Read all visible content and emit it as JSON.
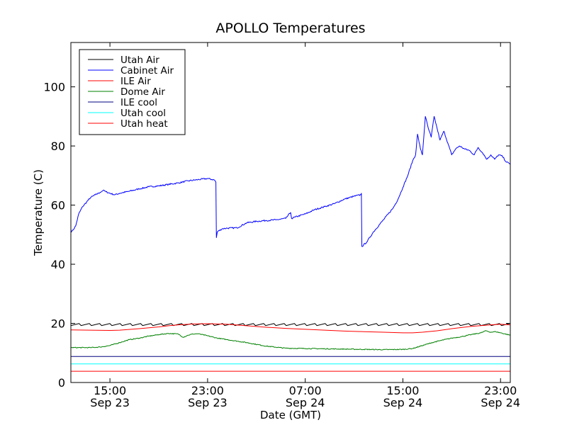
{
  "chart_data": {
    "type": "line",
    "title": "APOLLO Temperatures",
    "xlabel": "Date (GMT)",
    "ylabel": "Temperature (C)",
    "xlim_hours": [
      0,
      45
    ],
    "ylim": [
      0,
      115
    ],
    "yticks": [
      0,
      20,
      40,
      60,
      80,
      100
    ],
    "xticks": [
      {
        "hour": 4,
        "time": "15:00",
        "date": "Sep 23"
      },
      {
        "hour": 14,
        "time": "23:00",
        "date": "Sep 23"
      },
      {
        "hour": 24,
        "time": "07:00",
        "date": "Sep 24"
      },
      {
        "hour": 34,
        "time": "15:00",
        "date": "Sep 24"
      },
      {
        "hour": 44,
        "time": "23:00",
        "date": "Sep 24"
      }
    ],
    "x_axis_note": "x values are hours after 11:00 GMT Sep 23",
    "legend_position": "top-left",
    "series": [
      {
        "name": "Utah Air",
        "color": "#000000",
        "style": "sawtooth",
        "base": 19.6,
        "amplitude": 0.7,
        "period_hours": 1.05,
        "x": [
          0,
          45
        ],
        "y": [
          19.6,
          19.6
        ]
      },
      {
        "name": "Cabinet Air",
        "color": "#0000ff",
        "noise": 0.25,
        "x": [
          0,
          0.2,
          0.5,
          0.8,
          1.2,
          1.6,
          2.0,
          2.5,
          3.0,
          3.3,
          3.6,
          4.0,
          4.5,
          5.0,
          6.0,
          7.0,
          8.0,
          9.0,
          10.0,
          11.0,
          12.0,
          13.0,
          14.0,
          14.7,
          14.85,
          14.9,
          15.0,
          15.5,
          16.0,
          17.0,
          18.0,
          19.0,
          20.0,
          21.0,
          22.0,
          22.5,
          22.6,
          23.0,
          24.0,
          25.0,
          26.0,
          27.0,
          28.0,
          29.0,
          29.7,
          29.75,
          29.8,
          30.3,
          31.0,
          32.0,
          33.0,
          33.5,
          34.0,
          34.5,
          35.0,
          35.3,
          35.5,
          35.8,
          36.0,
          36.3,
          36.6,
          36.9,
          37.2,
          37.5,
          37.8,
          38.2,
          38.6,
          39.0,
          39.4,
          39.8,
          40.3,
          40.8,
          41.3,
          41.7,
          42.2,
          42.6,
          43.0,
          43.4,
          43.8,
          44.2,
          44.6,
          45.0
        ],
        "y": [
          51,
          51.5,
          53,
          57,
          59.5,
          61,
          62.5,
          63.5,
          64.3,
          65,
          64.5,
          64,
          63.5,
          64,
          64.7,
          65.5,
          66.2,
          66.5,
          67,
          67.5,
          68.2,
          68.6,
          69,
          68.5,
          67.8,
          49,
          51,
          52,
          52.2,
          52.3,
          54,
          54.5,
          54.8,
          55,
          55.5,
          57.5,
          55.5,
          56,
          57,
          58.5,
          59.5,
          60.5,
          62,
          63,
          63.5,
          64,
          46,
          47.5,
          51,
          55,
          59,
          62,
          66,
          70,
          75,
          77,
          84,
          79,
          77,
          90,
          86,
          83,
          90,
          86,
          82,
          85,
          81,
          77,
          79,
          80,
          79,
          78.5,
          77,
          79.5,
          77.5,
          75.5,
          77,
          75.5,
          77,
          76.5,
          74.5,
          74
        ]
      },
      {
        "name": "ILE Air",
        "color": "#ff0000",
        "x": [
          0,
          2,
          4,
          5,
          7,
          9,
          10,
          11,
          12.5,
          14,
          16,
          18,
          20,
          22,
          24,
          26,
          28,
          30,
          32,
          34,
          35,
          36,
          37.5,
          39,
          41,
          43,
          44,
          45
        ],
        "y": [
          17.8,
          17.7,
          17.6,
          17.7,
          18.2,
          18.8,
          19.2,
          19.5,
          19.8,
          19.9,
          19.7,
          19.2,
          18.7,
          18.3,
          18,
          17.7,
          17.4,
          17.2,
          17,
          16.8,
          16.8,
          17,
          17.5,
          18.2,
          19,
          19.5,
          19.7,
          19.5
        ]
      },
      {
        "name": "Dome Air",
        "color": "#008000",
        "noise": 0.15,
        "x": [
          0,
          2,
          3,
          4,
          5,
          6,
          7,
          8,
          9,
          10,
          11,
          11.5,
          12,
          12.5,
          13,
          14,
          15,
          16,
          18,
          20,
          22,
          24,
          26,
          28,
          30,
          32,
          34,
          35,
          36,
          37,
          38,
          39,
          40,
          41,
          42,
          42.5,
          43,
          43.5,
          44,
          45
        ],
        "y": [
          11.8,
          11.8,
          12,
          12.5,
          13.5,
          14.5,
          15,
          15.7,
          16.2,
          16.6,
          16.4,
          15.3,
          16,
          16.4,
          16.5,
          15.8,
          15,
          14.5,
          13.5,
          12.3,
          11.6,
          11.5,
          11.4,
          11.3,
          11.2,
          11.1,
          11.2,
          11.5,
          12.5,
          13.5,
          14.3,
          15,
          15.5,
          16.2,
          16.8,
          17.5,
          17,
          17.2,
          16.8,
          16
        ]
      },
      {
        "name": "ILE cool",
        "color": "#000080",
        "x": [
          0,
          45
        ],
        "y": [
          8.8,
          8.8
        ]
      },
      {
        "name": "Utah cool",
        "color": "#00ffff",
        "x": [
          0,
          45
        ],
        "y": [
          6.3,
          6.3
        ]
      },
      {
        "name": "Utah heat",
        "color": "#ff0000",
        "x": [
          0,
          45
        ],
        "y": [
          3.8,
          3.8
        ]
      }
    ]
  }
}
